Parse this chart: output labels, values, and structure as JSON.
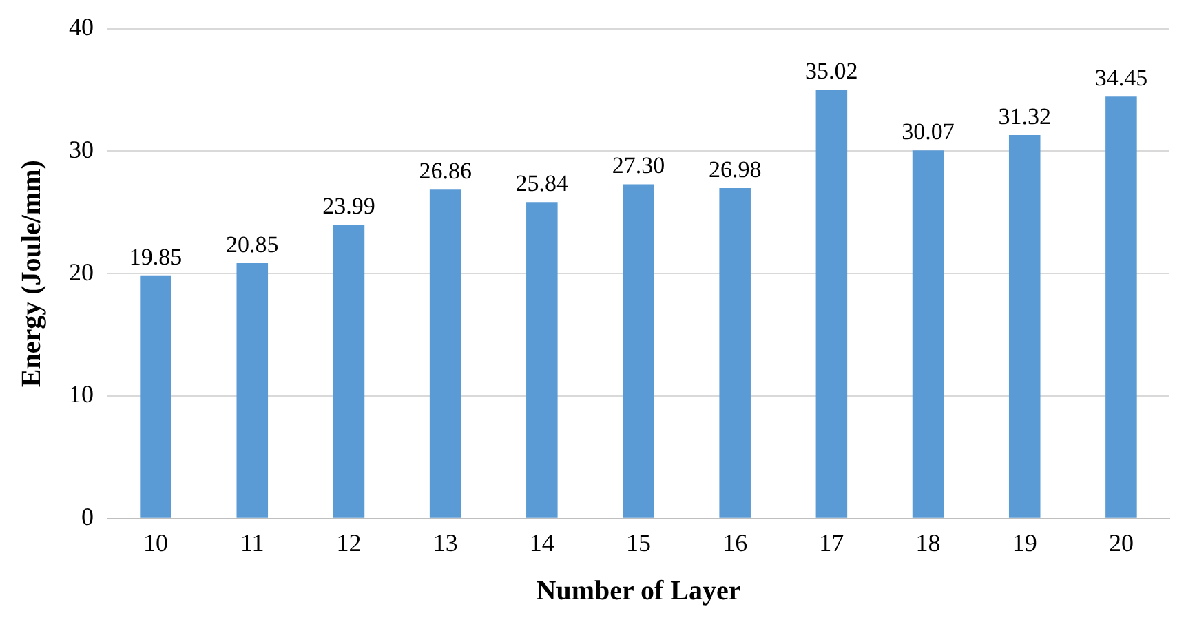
{
  "chart_data": {
    "type": "bar",
    "xlabel": "Number of Layer",
    "ylabel": "Energy (Joule/mm)",
    "categories": [
      "10",
      "11",
      "12",
      "13",
      "14",
      "15",
      "16",
      "17",
      "18",
      "19",
      "20"
    ],
    "values": [
      19.85,
      20.85,
      23.99,
      26.86,
      25.84,
      27.3,
      26.98,
      35.02,
      30.07,
      31.32,
      34.45
    ],
    "value_labels": [
      "19.85",
      "20.85",
      "23.99",
      "26.86",
      "25.84",
      "27.30",
      "26.98",
      "35.02",
      "30.07",
      "31.32",
      "34.45"
    ],
    "color": "#5b9bd5",
    "ylim": [
      0,
      40
    ],
    "yticks": [
      0,
      10,
      20,
      30,
      40
    ],
    "grid": "y",
    "legend": false
  }
}
